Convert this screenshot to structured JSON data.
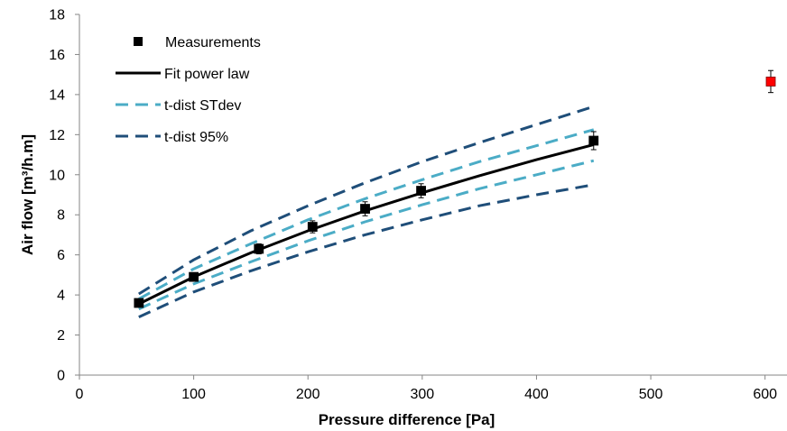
{
  "chart_data": {
    "type": "scatter",
    "title": "",
    "xlabel": "Pressure difference [Pa]",
    "ylabel": "Air flow [m³/h.m]",
    "xlim": [
      0,
      620
    ],
    "ylim": [
      0,
      18
    ],
    "xticks": [
      0,
      100,
      200,
      300,
      400,
      500,
      600
    ],
    "yticks": [
      0,
      2,
      4,
      6,
      8,
      10,
      12,
      14,
      16,
      18
    ],
    "grid": false,
    "legend_position": "top-left",
    "series": [
      {
        "name": "Measurements",
        "kind": "marker",
        "color": "#000000",
        "x": [
          52,
          100,
          157,
          204,
          250,
          299,
          450
        ],
        "y": [
          3.6,
          4.9,
          6.3,
          7.4,
          8.3,
          9.2,
          11.7
        ],
        "err": [
          0.2,
          0.2,
          0.25,
          0.3,
          0.35,
          0.35,
          0.45
        ]
      },
      {
        "name": "",
        "kind": "marker",
        "color": "#ff0000",
        "x": [
          605
        ],
        "y": [
          14.65
        ],
        "err": [
          0.55
        ]
      },
      {
        "name": "Fit power law",
        "kind": "line",
        "dash": "solid",
        "color": "#000000",
        "x": [
          52,
          100,
          150,
          200,
          250,
          300,
          350,
          400,
          450
        ],
        "y": [
          3.55,
          4.9,
          6.1,
          7.2,
          8.2,
          9.1,
          9.95,
          10.75,
          11.5
        ]
      },
      {
        "name": "t-dist STdev",
        "kind": "line",
        "dash": "dashed",
        "color": "#4bacc6",
        "x": [
          52,
          100,
          150,
          200,
          250,
          300,
          350,
          400,
          450
        ],
        "y": [
          3.8,
          5.3,
          6.55,
          7.75,
          8.8,
          9.75,
          10.65,
          11.45,
          12.25
        ]
      },
      {
        "name": "",
        "kind": "line",
        "dash": "dashed",
        "color": "#4bacc6",
        "x": [
          52,
          100,
          150,
          200,
          250,
          300,
          350,
          400,
          450
        ],
        "y": [
          3.3,
          4.55,
          5.65,
          6.7,
          7.65,
          8.5,
          9.3,
          10.0,
          10.7
        ]
      },
      {
        "name": "t-dist 95%",
        "kind": "line",
        "dash": "dashed",
        "color": "#1f4e79",
        "x": [
          52,
          100,
          150,
          200,
          250,
          300,
          350,
          400,
          450
        ],
        "y": [
          4.05,
          5.75,
          7.2,
          8.45,
          9.6,
          10.65,
          11.6,
          12.5,
          13.4
        ]
      },
      {
        "name": "",
        "kind": "line",
        "dash": "dashed",
        "color": "#1f4e79",
        "x": [
          52,
          100,
          150,
          200,
          250,
          300,
          350,
          400,
          450
        ],
        "y": [
          2.9,
          4.15,
          5.2,
          6.15,
          7.0,
          7.75,
          8.45,
          9.0,
          9.5
        ]
      }
    ],
    "legend": [
      {
        "label": "Measurements",
        "kind": "marker",
        "color": "#000000"
      },
      {
        "label": "Fit power law",
        "kind": "line",
        "dash": "solid",
        "color": "#000000"
      },
      {
        "label": "t-dist STdev",
        "kind": "line",
        "dash": "dashed",
        "color": "#4bacc6"
      },
      {
        "label": "t-dist 95%",
        "kind": "line",
        "dash": "dashed",
        "color": "#1f4e79"
      }
    ]
  }
}
